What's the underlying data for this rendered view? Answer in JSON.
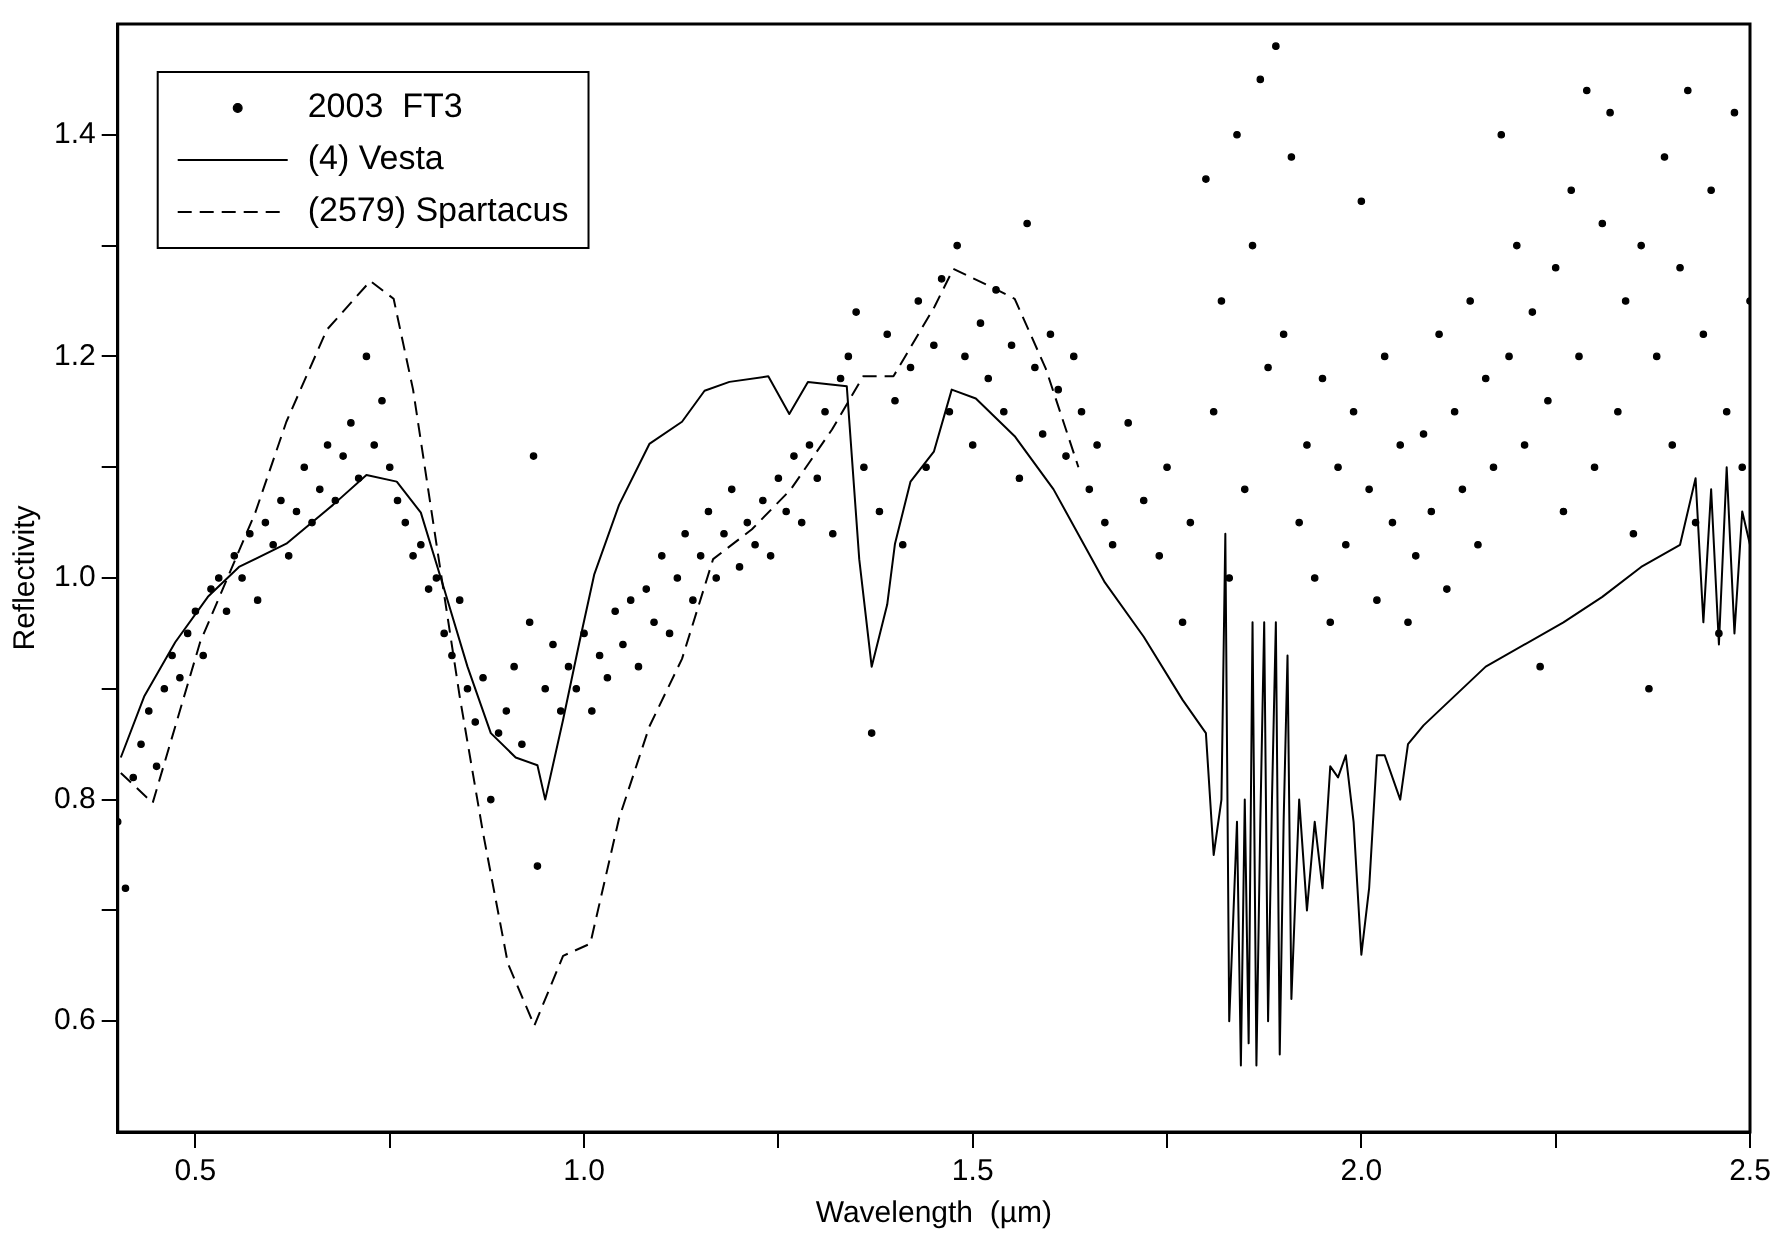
{
  "chart_data": {
    "type": "line",
    "xlabel": "Wavelength  (µm)",
    "ylabel": "Reflectivity",
    "xlim": [
      0.4,
      2.5
    ],
    "ylim": [
      0.5,
      1.5
    ],
    "xticks": [
      {
        "value": 0.5,
        "label": "0.5"
      },
      {
        "value": 0.75,
        "label": null
      },
      {
        "value": 1.0,
        "label": "1.0"
      },
      {
        "value": 1.25,
        "label": null
      },
      {
        "value": 1.5,
        "label": "1.5"
      },
      {
        "value": 1.75,
        "label": null
      },
      {
        "value": 2.0,
        "label": "2.0"
      },
      {
        "value": 2.25,
        "label": null
      },
      {
        "value": 2.5,
        "label": "2.5"
      }
    ],
    "yticks": [
      {
        "value": 0.6,
        "label": "0.6"
      },
      {
        "value": 0.7,
        "label": null
      },
      {
        "value": 0.8,
        "label": "0.8"
      },
      {
        "value": 0.9,
        "label": null
      },
      {
        "value": 1.0,
        "label": "1.0"
      },
      {
        "value": 1.1,
        "label": null
      },
      {
        "value": 1.2,
        "label": "1.2"
      },
      {
        "value": 1.3,
        "label": null
      },
      {
        "value": 1.4,
        "label": "1.4"
      }
    ],
    "grid": false,
    "legend": "top left",
    "series": [
      {
        "name": "2003  FT3",
        "type": "scatter",
        "marker": "circle",
        "color": "#000000",
        "x": [
          0.4,
          0.41,
          0.42,
          0.43,
          0.44,
          0.45,
          0.46,
          0.47,
          0.48,
          0.49,
          0.5,
          0.51,
          0.52,
          0.53,
          0.54,
          0.55,
          0.56,
          0.57,
          0.58,
          0.59,
          0.6,
          0.61,
          0.62,
          0.63,
          0.64,
          0.65,
          0.66,
          0.67,
          0.68,
          0.69,
          0.7,
          0.71,
          0.72,
          0.73,
          0.74,
          0.75,
          0.76,
          0.77,
          0.78,
          0.79,
          0.8,
          0.81,
          0.82,
          0.83,
          0.84,
          0.85,
          0.86,
          0.87,
          0.88,
          0.89,
          0.9,
          0.91,
          0.92,
          0.93,
          0.935,
          0.94,
          0.95,
          0.96,
          0.97,
          0.98,
          0.99,
          1.0,
          1.01,
          1.02,
          1.03,
          1.04,
          1.05,
          1.06,
          1.07,
          1.08,
          1.09,
          1.1,
          1.11,
          1.12,
          1.13,
          1.14,
          1.15,
          1.16,
          1.17,
          1.18,
          1.19,
          1.2,
          1.21,
          1.22,
          1.23,
          1.24,
          1.25,
          1.26,
          1.27,
          1.28,
          1.29,
          1.3,
          1.31,
          1.32,
          1.33,
          1.34,
          1.35,
          1.36,
          1.37,
          1.38,
          1.39,
          1.4,
          1.41,
          1.42,
          1.43,
          1.44,
          1.45,
          1.46,
          1.47,
          1.48,
          1.49,
          1.5,
          1.51,
          1.52,
          1.53,
          1.54,
          1.55,
          1.56,
          1.57,
          1.58,
          1.59,
          1.6,
          1.61,
          1.62,
          1.63,
          1.64,
          1.65,
          1.66,
          1.67,
          1.68,
          1.7,
          1.72,
          1.74,
          1.75,
          1.77,
          1.78,
          1.8,
          1.81,
          1.82,
          1.83,
          1.84,
          1.85,
          1.86,
          1.87,
          1.88,
          1.89,
          1.9,
          1.91,
          1.92,
          1.93,
          1.94,
          1.95,
          1.96,
          1.97,
          1.98,
          1.99,
          2.0,
          2.01,
          2.02,
          2.03,
          2.04,
          2.05,
          2.06,
          2.07,
          2.08,
          2.09,
          2.1,
          2.11,
          2.12,
          2.13,
          2.14,
          2.15,
          2.16,
          2.17,
          2.18,
          2.19,
          2.2,
          2.21,
          2.22,
          2.23,
          2.24,
          2.25,
          2.26,
          2.27,
          2.28,
          2.29,
          2.3,
          2.31,
          2.32,
          2.33,
          2.34,
          2.35,
          2.36,
          2.37,
          2.38,
          2.39,
          2.4,
          2.41,
          2.42,
          2.43,
          2.44,
          2.45,
          2.46,
          2.47,
          2.48,
          2.49,
          2.5
        ],
        "values": [
          0.78,
          0.72,
          0.82,
          0.85,
          0.88,
          0.83,
          0.9,
          0.93,
          0.91,
          0.95,
          0.97,
          0.93,
          0.99,
          1.0,
          0.97,
          1.02,
          1.0,
          1.04,
          0.98,
          1.05,
          1.03,
          1.07,
          1.02,
          1.06,
          1.1,
          1.05,
          1.08,
          1.12,
          1.07,
          1.11,
          1.14,
          1.09,
          1.2,
          1.12,
          1.16,
          1.1,
          1.07,
          1.05,
          1.02,
          1.03,
          0.99,
          1.0,
          0.95,
          0.93,
          0.98,
          0.9,
          0.87,
          0.91,
          0.8,
          0.86,
          0.88,
          0.92,
          0.85,
          0.96,
          1.11,
          0.74,
          0.9,
          0.94,
          0.88,
          0.92,
          0.9,
          0.95,
          0.88,
          0.93,
          0.91,
          0.97,
          0.94,
          0.98,
          0.92,
          0.99,
          0.96,
          1.02,
          0.95,
          1.0,
          1.04,
          0.98,
          1.02,
          1.06,
          1.0,
          1.04,
          1.08,
          1.01,
          1.05,
          1.03,
          1.07,
          1.02,
          1.09,
          1.06,
          1.11,
          1.05,
          1.12,
          1.09,
          1.15,
          1.04,
          1.18,
          1.2,
          1.24,
          1.1,
          0.86,
          1.06,
          1.22,
          1.16,
          1.03,
          1.19,
          1.25,
          1.1,
          1.21,
          1.27,
          1.15,
          1.3,
          1.2,
          1.12,
          1.23,
          1.18,
          1.26,
          1.15,
          1.21,
          1.09,
          1.32,
          1.19,
          1.13,
          1.22,
          1.17,
          1.11,
          1.2,
          1.15,
          1.08,
          1.12,
          1.05,
          1.03,
          1.14,
          1.07,
          1.02,
          1.1,
          0.96,
          1.05,
          1.36,
          1.15,
          1.25,
          1.0,
          1.4,
          1.08,
          1.3,
          1.45,
          1.19,
          1.48,
          1.22,
          1.38,
          1.05,
          1.12,
          1.0,
          1.18,
          0.96,
          1.1,
          1.03,
          1.15,
          1.34,
          1.08,
          0.98,
          1.2,
          1.05,
          1.12,
          0.96,
          1.02,
          1.13,
          1.06,
          1.22,
          0.99,
          1.15,
          1.08,
          1.25,
          1.03,
          1.18,
          1.1,
          1.4,
          1.2,
          1.3,
          1.12,
          1.24,
          0.92,
          1.16,
          1.28,
          1.06,
          1.35,
          1.2,
          1.44,
          1.1,
          1.32,
          1.42,
          1.15,
          1.25,
          1.04,
          1.3,
          0.9,
          1.2,
          1.38,
          1.12,
          1.28,
          1.44,
          1.05,
          1.22,
          1.35,
          0.95,
          1.15,
          1.42,
          1.1,
          1.25
        ]
      },
      {
        "name": "(4) Vesta",
        "line_style": "solid",
        "color": "#000000",
        "x": [
          0.404,
          0.434,
          0.474,
          0.516,
          0.556,
          0.617,
          0.677,
          0.72,
          0.759,
          0.79,
          0.82,
          0.85,
          0.88,
          0.912,
          0.94,
          0.95,
          0.973,
          0.994,
          1.013,
          1.045,
          1.084,
          1.126,
          1.155,
          1.187,
          1.237,
          1.264,
          1.288,
          1.338,
          1.354,
          1.37,
          1.39,
          1.4,
          1.42,
          1.45,
          1.473,
          1.504,
          1.554,
          1.604,
          1.67,
          1.72,
          1.77,
          1.8,
          1.81,
          1.82,
          1.825,
          1.83,
          1.84,
          1.845,
          1.85,
          1.855,
          1.86,
          1.865,
          1.87,
          1.875,
          1.88,
          1.885,
          1.89,
          1.895,
          1.9,
          1.905,
          1.91,
          1.92,
          1.93,
          1.94,
          1.95,
          1.96,
          1.97,
          1.98,
          1.99,
          2.0,
          2.01,
          2.02,
          2.03,
          2.05,
          2.06,
          2.08,
          2.16,
          2.26,
          2.31,
          2.36,
          2.41,
          2.43,
          2.44,
          2.45,
          2.46,
          2.47,
          2.48,
          2.49,
          2.5
        ],
        "values": [
          0.838,
          0.893,
          0.942,
          0.983,
          1.01,
          1.031,
          1.066,
          1.093,
          1.087,
          1.059,
          0.99,
          0.92,
          0.86,
          0.838,
          0.831,
          0.8,
          0.872,
          0.942,
          1.003,
          1.066,
          1.121,
          1.141,
          1.169,
          1.177,
          1.182,
          1.148,
          1.177,
          1.173,
          1.017,
          0.92,
          0.976,
          1.031,
          1.087,
          1.114,
          1.17,
          1.162,
          1.128,
          1.08,
          0.996,
          0.947,
          0.89,
          0.86,
          0.75,
          0.8,
          1.04,
          0.6,
          0.78,
          0.56,
          0.8,
          0.58,
          0.96,
          0.56,
          0.78,
          0.96,
          0.6,
          0.8,
          0.96,
          0.57,
          0.78,
          0.93,
          0.62,
          0.8,
          0.7,
          0.78,
          0.72,
          0.83,
          0.82,
          0.84,
          0.78,
          0.66,
          0.72,
          0.84,
          0.84,
          0.8,
          0.85,
          0.867,
          0.92,
          0.96,
          0.983,
          1.01,
          1.03,
          1.09,
          0.96,
          1.08,
          0.94,
          1.1,
          0.95,
          1.06,
          1.03
        ]
      },
      {
        "name": "(2579) Spartacus",
        "line_style": "dashed",
        "color": "#000000",
        "x": [
          0.404,
          0.445,
          0.506,
          0.577,
          0.617,
          0.669,
          0.725,
          0.755,
          0.78,
          0.81,
          0.84,
          0.87,
          0.902,
          0.936,
          0.973,
          1.008,
          1.045,
          1.084,
          1.126,
          1.166,
          1.216,
          1.266,
          1.319,
          1.359,
          1.398,
          1.451,
          1.475,
          1.523,
          1.554,
          1.594,
          1.636
        ],
        "values": [
          0.824,
          0.797,
          0.942,
          1.059,
          1.141,
          1.224,
          1.268,
          1.252,
          1.17,
          1.031,
          0.893,
          0.77,
          0.652,
          0.596,
          0.659,
          0.67,
          0.783,
          0.866,
          0.927,
          1.017,
          1.044,
          1.08,
          1.134,
          1.182,
          1.182,
          1.245,
          1.279,
          1.263,
          1.252,
          1.189,
          1.1
        ]
      }
    ]
  }
}
